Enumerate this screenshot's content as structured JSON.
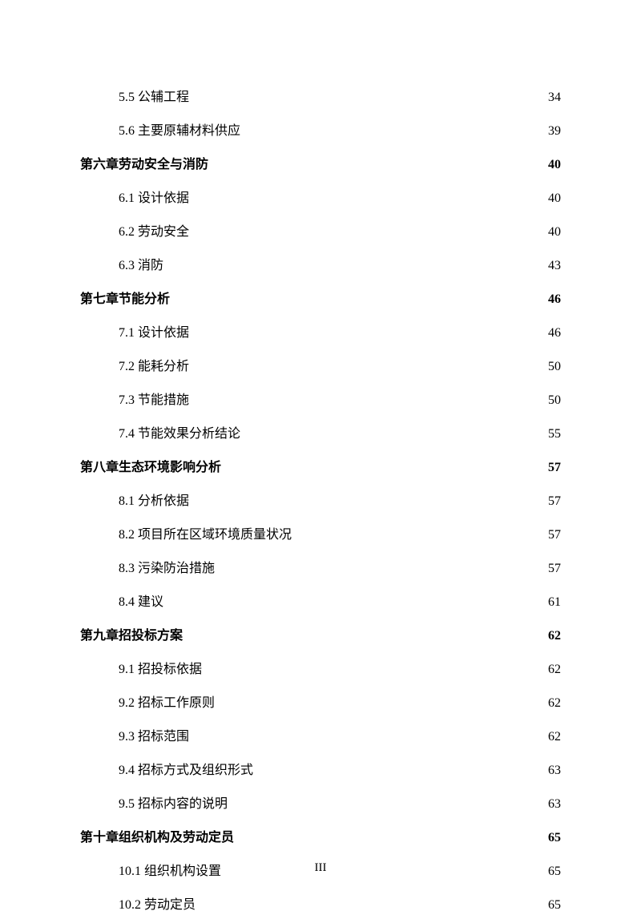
{
  "page_label": "III",
  "entries": [
    {
      "level": "section",
      "label": "5.5 公辅工程",
      "page": "34"
    },
    {
      "level": "section",
      "label": "5.6 主要原辅材料供应",
      "page": "39"
    },
    {
      "level": "chapter",
      "label": "第六章劳动安全与消防",
      "page": "40"
    },
    {
      "level": "section",
      "label": "6.1 设计依据",
      "page": "40"
    },
    {
      "level": "section",
      "label": "6.2 劳动安全",
      "page": "40"
    },
    {
      "level": "section",
      "label": "6.3 消防",
      "page": "43"
    },
    {
      "level": "chapter",
      "label": "第七章节能分析",
      "page": "46"
    },
    {
      "level": "section",
      "label": "7.1 设计依据",
      "page": "46"
    },
    {
      "level": "section",
      "label": "7.2 能耗分析",
      "page": "50"
    },
    {
      "level": "section",
      "label": "7.3 节能措施",
      "page": "50"
    },
    {
      "level": "section",
      "label": "7.4 节能效果分析结论",
      "page": "55"
    },
    {
      "level": "chapter",
      "label": "第八章生态环境影响分析",
      "page": "57"
    },
    {
      "level": "section",
      "label": "8.1 分析依据",
      "page": "57"
    },
    {
      "level": "section",
      "label": "8.2 项目所在区域环境质量状况",
      "page": "57"
    },
    {
      "level": "section",
      "label": "8.3 污染防治措施",
      "page": "57"
    },
    {
      "level": "section",
      "label": "8.4 建议",
      "page": "61"
    },
    {
      "level": "chapter",
      "label": "第九章招投标方案",
      "page": "62"
    },
    {
      "level": "section",
      "label": "9.1 招投标依据",
      "page": "62"
    },
    {
      "level": "section",
      "label": "9.2 招标工作原则",
      "page": "62"
    },
    {
      "level": "section",
      "label": "9.3 招标范围",
      "page": "62"
    },
    {
      "level": "section",
      "label": "9.4 招标方式及组织形式",
      "page": "63"
    },
    {
      "level": "section",
      "label": "9.5 招标内容的说明",
      "page": "63"
    },
    {
      "level": "chapter",
      "label": "第十章组织机构及劳动定员",
      "page": "65"
    },
    {
      "level": "section",
      "label": "10.1 组织机构设置",
      "page": "65"
    },
    {
      "level": "section",
      "label": "10.2 劳动定员",
      "page": "65"
    }
  ]
}
